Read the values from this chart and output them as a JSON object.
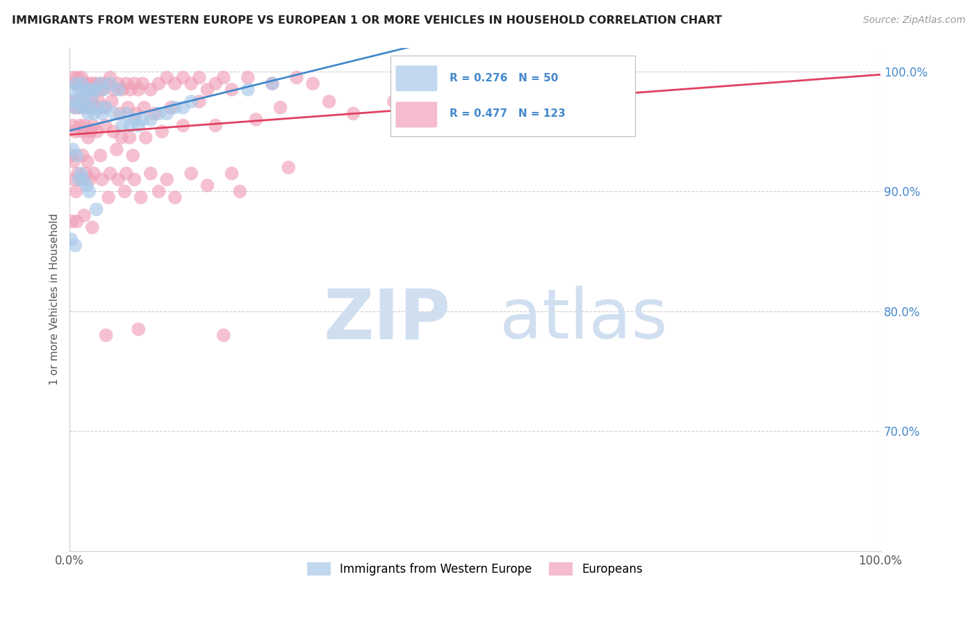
{
  "title": "IMMIGRANTS FROM WESTERN EUROPE VS EUROPEAN 1 OR MORE VEHICLES IN HOUSEHOLD CORRELATION CHART",
  "source": "Source: ZipAtlas.com",
  "ylabel": "1 or more Vehicles in Household",
  "legend_blue_label": "Immigrants from Western Europe",
  "legend_pink_label": "Europeans",
  "legend_blue_R": "R = 0.276",
  "legend_blue_N": "N = 50",
  "legend_pink_R": "R = 0.477",
  "legend_pink_N": "N = 123",
  "blue_color": "#a8c8e8",
  "pink_color": "#f0a0b8",
  "blue_line_color": "#4488cc",
  "pink_line_color": "#e04060",
  "ytick_color": "#4488cc",
  "background_color": "#ffffff",
  "watermark_zip": "ZIP",
  "watermark_atlas": "atlas",
  "watermark_color": "#d0dff0",
  "xmin": 0,
  "xmax": 100,
  "ymin": 60,
  "ymax": 102,
  "yticks": [
    70,
    80,
    90,
    100
  ],
  "ytick_labels": [
    "70.0%",
    "80.0%",
    "90.0%",
    "100.0%"
  ],
  "blue_scatter_x": [
    0.5,
    0.8,
    1.2,
    1.5,
    1.8,
    2.2,
    2.5,
    2.8,
    3.2,
    3.8,
    4.2,
    5.0,
    6.0,
    7.0,
    8.5,
    10.0,
    12.0,
    14.0,
    0.3,
    0.6,
    1.0,
    1.3,
    1.6,
    2.0,
    2.3,
    2.6,
    3.0,
    3.5,
    4.0,
    4.5,
    5.5,
    6.5,
    7.5,
    8.0,
    9.0,
    11.0,
    13.0,
    15.0,
    0.4,
    0.9,
    1.1,
    1.4,
    1.7,
    2.1,
    2.4,
    3.3,
    22.0,
    0.2,
    0.7,
    25.0
  ],
  "blue_scatter_y": [
    98.5,
    99.0,
    98.5,
    99.0,
    98.0,
    98.5,
    98.5,
    98.0,
    98.5,
    99.0,
    98.5,
    99.0,
    98.5,
    96.5,
    95.5,
    96.0,
    96.5,
    97.0,
    97.5,
    97.0,
    97.5,
    97.0,
    97.5,
    97.0,
    96.5,
    97.0,
    96.5,
    97.0,
    96.5,
    97.0,
    96.5,
    95.5,
    95.5,
    96.0,
    96.0,
    96.5,
    97.0,
    97.5,
    93.5,
    93.0,
    91.0,
    91.5,
    91.0,
    90.5,
    90.0,
    88.5,
    98.5,
    86.0,
    85.5,
    99.0
  ],
  "pink_scatter_x": [
    0.5,
    0.8,
    1.0,
    1.2,
    1.5,
    1.8,
    2.0,
    2.2,
    2.5,
    2.8,
    3.0,
    3.2,
    3.5,
    3.8,
    4.0,
    4.5,
    5.0,
    5.5,
    6.0,
    6.5,
    7.0,
    7.5,
    8.0,
    8.5,
    9.0,
    10.0,
    11.0,
    12.0,
    13.0,
    14.0,
    15.0,
    16.0,
    17.0,
    18.0,
    19.0,
    20.0,
    22.0,
    25.0,
    28.0,
    30.0,
    0.3,
    0.6,
    0.9,
    1.1,
    1.4,
    1.7,
    2.1,
    2.4,
    2.7,
    3.3,
    3.6,
    4.2,
    5.2,
    6.2,
    7.2,
    8.2,
    9.2,
    10.5,
    12.5,
    16.0,
    0.4,
    0.7,
    1.3,
    1.6,
    1.9,
    2.3,
    2.6,
    2.9,
    3.4,
    4.4,
    5.4,
    6.4,
    7.4,
    9.4,
    11.4,
    14.0,
    18.0,
    23.0,
    35.0,
    50.0,
    0.2,
    0.5,
    1.6,
    2.2,
    3.8,
    5.8,
    7.8,
    26.0,
    32.0,
    40.0,
    55.0,
    60.0,
    0.6,
    1.0,
    1.5,
    2.0,
    2.5,
    3.0,
    4.0,
    5.0,
    6.0,
    7.0,
    8.0,
    10.0,
    12.0,
    15.0,
    20.0,
    27.0,
    0.8,
    4.8,
    6.8,
    8.8,
    11.0,
    13.0,
    17.0,
    21.0,
    0.3,
    0.9,
    1.8,
    2.8,
    4.5,
    8.5,
    19.0
  ],
  "pink_scatter_y": [
    99.5,
    99.0,
    99.5,
    99.0,
    99.5,
    99.0,
    98.5,
    99.0,
    98.5,
    99.0,
    98.5,
    99.0,
    98.5,
    99.0,
    98.5,
    99.0,
    99.5,
    98.5,
    99.0,
    98.5,
    99.0,
    98.5,
    99.0,
    98.5,
    99.0,
    98.5,
    99.0,
    99.5,
    99.0,
    99.5,
    99.0,
    99.5,
    98.5,
    99.0,
    99.5,
    98.5,
    99.5,
    99.0,
    99.5,
    99.0,
    97.5,
    97.0,
    97.5,
    97.0,
    97.5,
    97.0,
    97.5,
    97.0,
    97.5,
    97.0,
    97.5,
    97.0,
    97.5,
    96.5,
    97.0,
    96.5,
    97.0,
    96.5,
    97.0,
    97.5,
    95.5,
    95.0,
    95.5,
    95.0,
    95.5,
    94.5,
    95.0,
    95.5,
    95.0,
    95.5,
    95.0,
    94.5,
    94.5,
    94.5,
    95.0,
    95.5,
    95.5,
    96.0,
    96.5,
    97.0,
    93.0,
    92.5,
    93.0,
    92.5,
    93.0,
    93.5,
    93.0,
    97.0,
    97.5,
    97.5,
    98.5,
    97.5,
    91.0,
    91.5,
    91.0,
    91.5,
    91.0,
    91.5,
    91.0,
    91.5,
    91.0,
    91.5,
    91.0,
    91.5,
    91.0,
    91.5,
    91.5,
    92.0,
    90.0,
    89.5,
    90.0,
    89.5,
    90.0,
    89.5,
    90.5,
    90.0,
    87.5,
    87.5,
    88.0,
    87.0,
    78.0,
    78.5,
    78.0
  ]
}
